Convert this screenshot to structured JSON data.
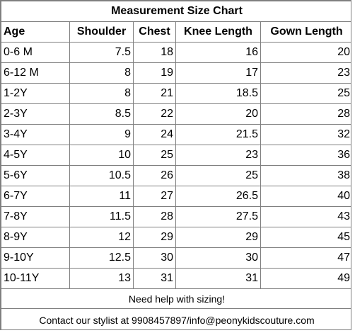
{
  "title": "Measurement Size Chart",
  "columns": [
    "Age",
    "Shoulder",
    "Chest",
    "Knee Length",
    "Gown Length"
  ],
  "rows": [
    [
      "0-6 M",
      "7.5",
      "18",
      "16",
      "20"
    ],
    [
      "6-12 M",
      "8",
      "19",
      "17",
      "23"
    ],
    [
      "1-2Y",
      "8",
      "21",
      "18.5",
      "25"
    ],
    [
      "2-3Y",
      "8.5",
      "22",
      "20",
      "28"
    ],
    [
      "3-4Y",
      "9",
      "24",
      "21.5",
      "32"
    ],
    [
      "4-5Y",
      "10",
      "25",
      "23",
      "36"
    ],
    [
      "5-6Y",
      "10.5",
      "26",
      "25",
      "38"
    ],
    [
      "6-7Y",
      "11",
      "27",
      "26.5",
      "40"
    ],
    [
      "7-8Y",
      "11.5",
      "28",
      "27.5",
      "43"
    ],
    [
      "8-9Y",
      "12",
      "29",
      "29",
      "45"
    ],
    [
      "9-10Y",
      "12.5",
      "30",
      "30",
      "47"
    ],
    [
      "10-11Y",
      "13",
      "31",
      "31",
      "49"
    ]
  ],
  "help_text": "Need help with sizing!",
  "contact_text": "Contact our stylist at 9908457897/info@peonykidscouture.com",
  "colors": {
    "border": "#7f7f7f",
    "text": "#000000",
    "background": "#ffffff"
  }
}
